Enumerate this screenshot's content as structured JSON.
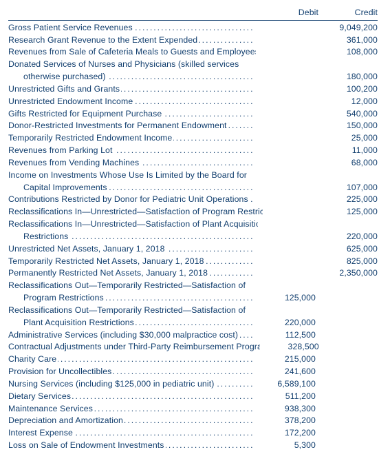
{
  "colors": {
    "text": "#113e6e",
    "background": "#ffffff"
  },
  "typography": {
    "font_family": "Segoe UI / Helvetica-like sans-serif",
    "font_size_pt": 9,
    "line_height": 1.45
  },
  "headers": {
    "debit": "Debit",
    "credit": "Credit"
  },
  "rows": [
    {
      "label": "Gross Patient Service Revenues",
      "credit": "9,049,200"
    },
    {
      "label": "Research Grant Revenue to the Extent Expended",
      "credit": "361,000"
    },
    {
      "label": "Revenues from Sale of Cafeteria Meals to Guests and Employees",
      "credit": "108,000"
    },
    {
      "label": "Donated Services of Nurses and Physicians (skilled services",
      "no_dots": true
    },
    {
      "label": "otherwise purchased)",
      "hang": true,
      "credit": "180,000"
    },
    {
      "label": "Unrestricted Gifts and Grants",
      "credit": "100,200"
    },
    {
      "label": "Unrestricted Endowment Income",
      "credit": "12,000"
    },
    {
      "label": "Gifts Restricted for Equipment Purchase",
      "credit": "540,000"
    },
    {
      "label": "Donor-Restricted Investments for Permanent Endowment",
      "credit": "150,000"
    },
    {
      "label": "Temporarily Restricted Endowment Income",
      "credit": "25,000"
    },
    {
      "label": "Revenues from Parking Lot",
      "credit": "11,000"
    },
    {
      "label": "Revenues from Vending Machines",
      "credit": "68,000"
    },
    {
      "label": "Income on Investments Whose Use Is Limited by the Board for",
      "no_dots": true
    },
    {
      "label": "Capital Improvements",
      "hang": true,
      "credit": "107,000"
    },
    {
      "label": "Contributions Restricted by Donor for Pediatric Unit Operations",
      "credit": "225,000"
    },
    {
      "label": "Reclassifications In—Unrestricted—Satisfaction of Program Restrictions",
      "credit": "125,000"
    },
    {
      "label": "Reclassifications In—Unrestricted—Satisfaction of Plant Acquisition",
      "no_dots": true
    },
    {
      "label": "Restrictions",
      "hang": true,
      "credit": "220,000"
    },
    {
      "label": "Unrestricted Net Assets, January 1, 2018",
      "credit": "625,000"
    },
    {
      "label": "Temporarily Restricted Net Assets, January 1, 2018",
      "credit": "825,000"
    },
    {
      "label": "Permanently Restricted Net Assets, January 1, 2018",
      "credit": "2,350,000"
    },
    {
      "label": "Reclassifications Out—Temporarily Restricted—Satisfaction of",
      "no_dots": true
    },
    {
      "label": "Program Restrictions",
      "hang": true,
      "debit": "125,000"
    },
    {
      "label": "Reclassifications Out—Temporarily Restricted—Satisfaction of",
      "no_dots": true
    },
    {
      "label": "Plant Acquisition Restrictions",
      "hang": true,
      "debit": "220,000"
    },
    {
      "label": "Administrative Services (including $30,000 malpractice cost)",
      "debit": "112,500"
    },
    {
      "label": "Contractual Adjustments under Third-Party Reimbursement Programs",
      "debit": "328,500"
    },
    {
      "label": "Charity Care",
      "debit": "215,000"
    },
    {
      "label": "Provision for Uncollectibles",
      "debit": "241,600"
    },
    {
      "label": "Nursing Services (including $125,000 in pediatric unit)",
      "debit": "6,589,100"
    },
    {
      "label": "Dietary Services",
      "debit": "511,200"
    },
    {
      "label": "Maintenance Services",
      "debit": "938,300"
    },
    {
      "label": "Depreciation and Amortization",
      "debit": "378,200"
    },
    {
      "label": "Interest Expense",
      "debit": "172,200"
    },
    {
      "label": "Loss on Sale of Endowment Investments",
      "debit": "5,300"
    }
  ]
}
